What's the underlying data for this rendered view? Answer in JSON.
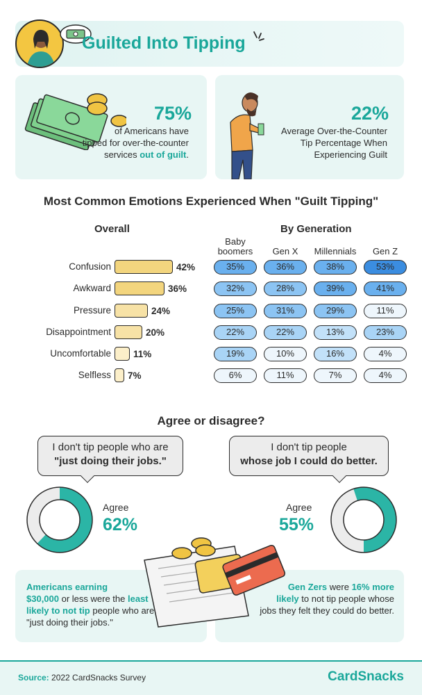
{
  "header": {
    "title": "Guilted Into Tipping"
  },
  "stats": [
    {
      "pct": "75%",
      "lines": [
        "of Americans have",
        "tipped for over-the-counter"
      ],
      "line3_plain": "services ",
      "line3_emph": "out of guilt",
      "line3_end": "."
    },
    {
      "pct": "22%",
      "lines": [
        "Average Over-the-Counter",
        "Tip Percentage When",
        "Experiencing Guilt"
      ]
    }
  ],
  "emotions_title": "Most Common Emotions Experienced When \"Guilt Tipping\"",
  "overall_heading": "Overall",
  "generation_heading": "By Generation",
  "generations": [
    [
      "Baby",
      "boomers"
    ],
    [
      "Gen X"
    ],
    [
      "Millennials"
    ],
    [
      "Gen Z"
    ]
  ],
  "chart_data": {
    "type": "table",
    "title": "Most Common Emotions Experienced When \"Guilt Tipping\"",
    "categories": [
      "Confusion",
      "Awkward",
      "Pressure",
      "Disappointment",
      "Uncomfortable",
      "Selfless"
    ],
    "overall": [
      42,
      36,
      24,
      20,
      11,
      7
    ],
    "series": [
      {
        "name": "Baby boomers",
        "values": [
          35,
          32,
          25,
          22,
          19,
          6
        ]
      },
      {
        "name": "Gen X",
        "values": [
          36,
          28,
          31,
          22,
          10,
          11
        ]
      },
      {
        "name": "Millennials",
        "values": [
          38,
          39,
          29,
          13,
          16,
          7
        ]
      },
      {
        "name": "Gen Z",
        "values": [
          53,
          41,
          11,
          23,
          4,
          4
        ]
      }
    ]
  },
  "agree_title": "Agree or disagree?",
  "statements": [
    {
      "line1": "I don't tip people who are",
      "line2": "\"just doing their jobs.\"",
      "agree_label": "Agree",
      "agree_value": 62,
      "agree_text": "62%"
    },
    {
      "line1": "I don't tip people",
      "line2": "whose job I could do better.",
      "agree_label": "Agree",
      "agree_value": 55,
      "agree_text": "55%"
    }
  ],
  "notes": [
    {
      "t1": "Americans earning",
      "t2": "$30,000",
      "t3": " or less were the ",
      "t4": "least",
      "t5": "likely to not tip",
      "t6": " people who are",
      "t7": "\"just doing their jobs.\""
    },
    {
      "t1": "Gen Zers",
      "t2": " were ",
      "t3": "16% more",
      "t4": "likely",
      "t5": " to not tip people whose",
      "t6": "jobs they felt they could do better."
    }
  ],
  "footer": {
    "source_label": "Source:",
    "source_text": " 2022 CardSnacks Survey",
    "brand": "CardSnacks"
  },
  "colors": {
    "teal": "#1aa79a",
    "bar_fill_high": "#f3d57e",
    "bar_fill_low": "#fbeac0",
    "pill_high": "#3b8fd9",
    "pill_low": "#eaf4fb"
  }
}
